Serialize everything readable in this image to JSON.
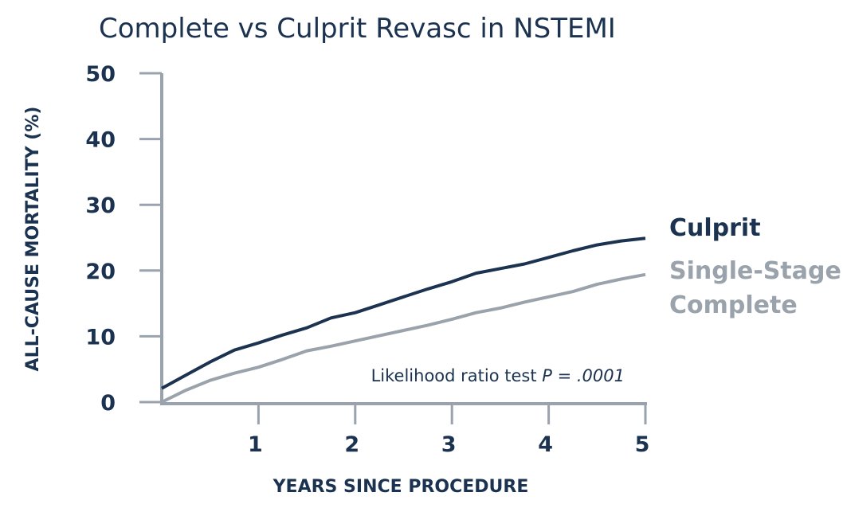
{
  "chart_data": {
    "type": "line",
    "title": "Complete vs Culprit Revasc in NSTEMI",
    "xlabel": "YEARS SINCE PROCEDURE",
    "ylabel": "ALL-CAUSE MORTALITY (%)",
    "xlim": [
      0,
      5
    ],
    "ylim": [
      0,
      50
    ],
    "xticks": [
      "1",
      "2",
      "3",
      "4",
      "5"
    ],
    "yticks": [
      "0",
      "10",
      "20",
      "30",
      "40",
      "50"
    ],
    "grid": false,
    "legend_placement": "right",
    "x": [
      0,
      0.25,
      0.5,
      0.75,
      1,
      1.25,
      1.5,
      1.75,
      2,
      2.25,
      2.5,
      2.75,
      3,
      3.25,
      3.5,
      3.75,
      4,
      4.25,
      4.5,
      4.75,
      5
    ],
    "series": [
      {
        "name": "Culprit",
        "label_lines": [
          "Culprit"
        ],
        "color": "#1b3350",
        "values": [
          2.1,
          4.1,
          6.1,
          7.9,
          9.0,
          10.2,
          11.3,
          12.8,
          13.6,
          14.8,
          16.0,
          17.2,
          18.3,
          19.6,
          20.3,
          21.0,
          22.0,
          23.0,
          23.9,
          24.5,
          24.9
        ]
      },
      {
        "name": "Single-Stage Complete",
        "label_lines": [
          "Single-Stage",
          "Complete"
        ],
        "color": "#9aa2ab",
        "values": [
          0,
          1.8,
          3.3,
          4.4,
          5.3,
          6.5,
          7.8,
          8.5,
          9.3,
          10.1,
          10.9,
          11.7,
          12.6,
          13.6,
          14.3,
          15.2,
          16.0,
          16.8,
          17.9,
          18.7,
          19.4
        ]
      }
    ],
    "annotation": {
      "text": "Likelihood ratio test ",
      "p_label": "P",
      "p_value": " = .0001"
    }
  }
}
